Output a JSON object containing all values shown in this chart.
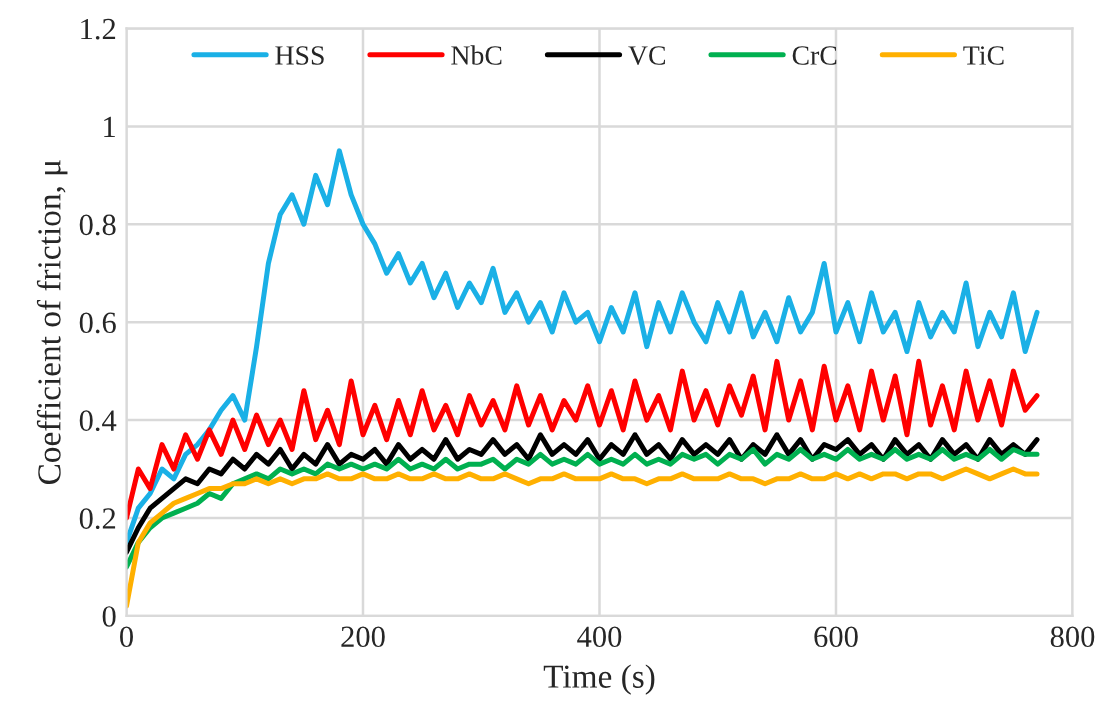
{
  "chart_data": {
    "type": "line",
    "xlabel": "Time (s)",
    "ylabel": "Coefficient of friction, μ",
    "x": [
      0,
      10,
      20,
      30,
      40,
      50,
      60,
      70,
      80,
      90,
      100,
      110,
      120,
      130,
      140,
      150,
      160,
      170,
      180,
      190,
      200,
      210,
      220,
      230,
      240,
      250,
      260,
      270,
      280,
      290,
      300,
      310,
      320,
      330,
      340,
      350,
      360,
      370,
      380,
      390,
      400,
      410,
      420,
      430,
      440,
      450,
      460,
      470,
      480,
      490,
      500,
      510,
      520,
      530,
      540,
      550,
      560,
      570,
      580,
      590,
      600,
      610,
      620,
      630,
      640,
      650,
      660,
      670,
      680,
      690,
      700,
      710,
      720,
      730,
      740,
      750,
      760,
      770
    ],
    "series": [
      {
        "name": "HSS",
        "color": "#1ab0e6",
        "values": [
          0.15,
          0.22,
          0.25,
          0.3,
          0.28,
          0.33,
          0.35,
          0.38,
          0.42,
          0.45,
          0.4,
          0.55,
          0.72,
          0.82,
          0.86,
          0.8,
          0.9,
          0.84,
          0.95,
          0.86,
          0.8,
          0.76,
          0.7,
          0.74,
          0.68,
          0.72,
          0.65,
          0.7,
          0.63,
          0.68,
          0.64,
          0.71,
          0.62,
          0.66,
          0.6,
          0.64,
          0.58,
          0.66,
          0.6,
          0.62,
          0.56,
          0.63,
          0.58,
          0.66,
          0.55,
          0.64,
          0.58,
          0.66,
          0.6,
          0.56,
          0.64,
          0.58,
          0.66,
          0.57,
          0.62,
          0.56,
          0.65,
          0.58,
          0.62,
          0.72,
          0.58,
          0.64,
          0.56,
          0.66,
          0.58,
          0.62,
          0.54,
          0.64,
          0.57,
          0.62,
          0.58,
          0.68,
          0.55,
          0.62,
          0.57,
          0.66,
          0.54,
          0.62
        ]
      },
      {
        "name": "NbC",
        "color": "#ff0000",
        "values": [
          0.2,
          0.3,
          0.26,
          0.35,
          0.3,
          0.37,
          0.32,
          0.38,
          0.33,
          0.4,
          0.34,
          0.41,
          0.35,
          0.4,
          0.34,
          0.46,
          0.36,
          0.42,
          0.35,
          0.48,
          0.37,
          0.43,
          0.36,
          0.44,
          0.37,
          0.46,
          0.38,
          0.43,
          0.37,
          0.45,
          0.39,
          0.44,
          0.38,
          0.47,
          0.39,
          0.45,
          0.38,
          0.44,
          0.4,
          0.47,
          0.39,
          0.46,
          0.38,
          0.48,
          0.4,
          0.45,
          0.38,
          0.5,
          0.4,
          0.46,
          0.39,
          0.47,
          0.41,
          0.49,
          0.38,
          0.52,
          0.4,
          0.48,
          0.38,
          0.51,
          0.4,
          0.47,
          0.38,
          0.5,
          0.4,
          0.49,
          0.37,
          0.52,
          0.39,
          0.47,
          0.38,
          0.5,
          0.4,
          0.48,
          0.39,
          0.5,
          0.42,
          0.45
        ]
      },
      {
        "name": "VC",
        "color": "#000000",
        "values": [
          0.13,
          0.18,
          0.22,
          0.24,
          0.26,
          0.28,
          0.27,
          0.3,
          0.29,
          0.32,
          0.3,
          0.33,
          0.31,
          0.34,
          0.3,
          0.33,
          0.31,
          0.35,
          0.31,
          0.33,
          0.32,
          0.34,
          0.31,
          0.35,
          0.32,
          0.34,
          0.32,
          0.36,
          0.32,
          0.34,
          0.33,
          0.36,
          0.33,
          0.35,
          0.32,
          0.37,
          0.33,
          0.35,
          0.33,
          0.36,
          0.32,
          0.35,
          0.33,
          0.37,
          0.33,
          0.35,
          0.32,
          0.36,
          0.33,
          0.35,
          0.33,
          0.36,
          0.32,
          0.35,
          0.33,
          0.37,
          0.33,
          0.36,
          0.32,
          0.35,
          0.34,
          0.36,
          0.33,
          0.35,
          0.32,
          0.36,
          0.33,
          0.35,
          0.32,
          0.36,
          0.33,
          0.35,
          0.32,
          0.36,
          0.33,
          0.35,
          0.33,
          0.36
        ]
      },
      {
        "name": "CrC",
        "color": "#00b050",
        "values": [
          0.1,
          0.15,
          0.18,
          0.2,
          0.21,
          0.22,
          0.23,
          0.25,
          0.24,
          0.27,
          0.28,
          0.29,
          0.28,
          0.3,
          0.29,
          0.3,
          0.29,
          0.31,
          0.3,
          0.31,
          0.3,
          0.31,
          0.3,
          0.32,
          0.3,
          0.31,
          0.3,
          0.32,
          0.3,
          0.31,
          0.31,
          0.32,
          0.3,
          0.32,
          0.31,
          0.33,
          0.31,
          0.32,
          0.31,
          0.33,
          0.31,
          0.32,
          0.31,
          0.33,
          0.31,
          0.32,
          0.31,
          0.33,
          0.32,
          0.33,
          0.31,
          0.33,
          0.32,
          0.34,
          0.31,
          0.33,
          0.32,
          0.34,
          0.32,
          0.33,
          0.32,
          0.34,
          0.32,
          0.33,
          0.32,
          0.34,
          0.32,
          0.33,
          0.32,
          0.34,
          0.32,
          0.33,
          0.32,
          0.34,
          0.32,
          0.34,
          0.33,
          0.33
        ]
      },
      {
        "name": "TiC",
        "color": "#ffb000",
        "values": [
          0.02,
          0.15,
          0.19,
          0.21,
          0.23,
          0.24,
          0.25,
          0.26,
          0.26,
          0.27,
          0.27,
          0.28,
          0.27,
          0.28,
          0.27,
          0.28,
          0.28,
          0.29,
          0.28,
          0.28,
          0.29,
          0.28,
          0.28,
          0.29,
          0.28,
          0.28,
          0.29,
          0.28,
          0.28,
          0.29,
          0.28,
          0.28,
          0.29,
          0.28,
          0.27,
          0.28,
          0.28,
          0.29,
          0.28,
          0.28,
          0.28,
          0.29,
          0.28,
          0.28,
          0.27,
          0.28,
          0.28,
          0.29,
          0.28,
          0.28,
          0.28,
          0.29,
          0.28,
          0.28,
          0.27,
          0.28,
          0.28,
          0.29,
          0.28,
          0.28,
          0.29,
          0.28,
          0.29,
          0.28,
          0.29,
          0.29,
          0.28,
          0.29,
          0.29,
          0.28,
          0.29,
          0.3,
          0.29,
          0.28,
          0.29,
          0.3,
          0.29,
          0.29
        ]
      }
    ],
    "xlim": [
      0,
      800
    ],
    "xticks": [
      0,
      200,
      400,
      600,
      800
    ],
    "ylim": [
      0,
      1.2
    ],
    "yticks": [
      0,
      0.2,
      0.4,
      0.6,
      0.8,
      1,
      1.2
    ],
    "grid": true,
    "legend": "top",
    "marker": "none",
    "line_style": "solid"
  }
}
